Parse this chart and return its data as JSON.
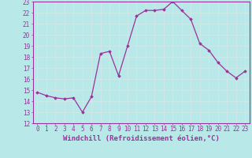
{
  "x": [
    0,
    1,
    2,
    3,
    4,
    5,
    6,
    7,
    8,
    9,
    10,
    11,
    12,
    13,
    14,
    15,
    16,
    17,
    18,
    19,
    20,
    21,
    22,
    23
  ],
  "y": [
    14.8,
    14.5,
    14.3,
    14.2,
    14.3,
    13.0,
    14.4,
    18.3,
    18.5,
    16.3,
    19.0,
    21.7,
    22.2,
    22.2,
    22.3,
    23.0,
    22.2,
    21.4,
    19.2,
    18.6,
    17.5,
    16.7,
    16.1,
    16.7
  ],
  "ylim": [
    12,
    23
  ],
  "yticks": [
    12,
    13,
    14,
    15,
    16,
    17,
    18,
    19,
    20,
    21,
    22,
    23
  ],
  "xticks": [
    0,
    1,
    2,
    3,
    4,
    5,
    6,
    7,
    8,
    9,
    10,
    11,
    12,
    13,
    14,
    15,
    16,
    17,
    18,
    19,
    20,
    21,
    22,
    23
  ],
  "xlabel": "Windchill (Refroidissement éolien,°C)",
  "line_color": "#993399",
  "marker": "D",
  "marker_size": 1.8,
  "bg_color": "#b8e8e8",
  "grid_color": "#d0e8e8",
  "tick_color": "#993399",
  "xlabel_color": "#993399",
  "tick_fontsize": 5.5,
  "xlabel_fontsize": 6.5
}
